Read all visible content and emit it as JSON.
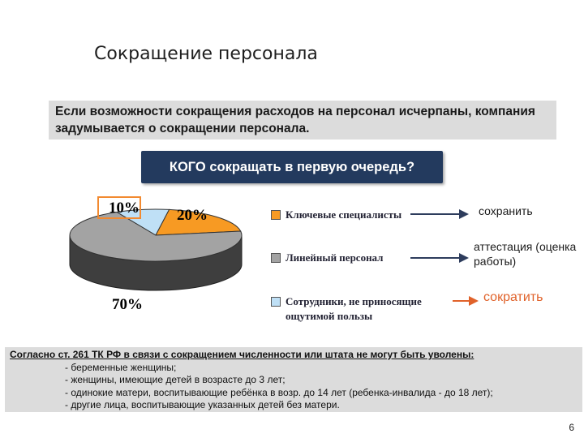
{
  "title": "Сокращение персонала",
  "intro": "Если возможности сокращения расходов на персонал исчерпаны, компания задумывается о сокращении персонала.",
  "question": "КОГО сокращать в первую очередь?",
  "chart_data": {
    "type": "pie",
    "labels": [
      "Ключевые специалисты",
      "Линейный персонал",
      "Сотрудники, не приносящие ощутимой пользы"
    ],
    "values": [
      20,
      70,
      10
    ],
    "value_labels": [
      "20%",
      "70%",
      "10%"
    ],
    "colors": [
      "#f79a23",
      "#a3a3a3",
      "#bfe0f6"
    ],
    "side_color": "#3e3e3e",
    "style": "3d"
  },
  "legend": [
    {
      "label": "Ключевые специалисты",
      "color": "#f79a23",
      "action": "сохранить"
    },
    {
      "label": "Линейный персонал",
      "color": "#a3a3a3",
      "action": "аттестация (оценка работы)"
    },
    {
      "label": "Сотрудники, не приносящие ощутимой пользы",
      "color": "#bfe0f6",
      "action": "сократить"
    }
  ],
  "law": {
    "heading": "Согласно ст. 261 ТК РФ в связи с сокращением численности или штата не могут быть уволены:",
    "items": [
      "- беременные женщины;",
      "- женщины, имеющие детей в возрасте до 3 лет;",
      "- одинокие матери, воспитывающие ребёнка в возр. до 14 лет (ребенка-инвалида - до 18 лет);",
      "- другие лица, воспитывающие указанных детей без матери."
    ]
  },
  "page_number": "6"
}
